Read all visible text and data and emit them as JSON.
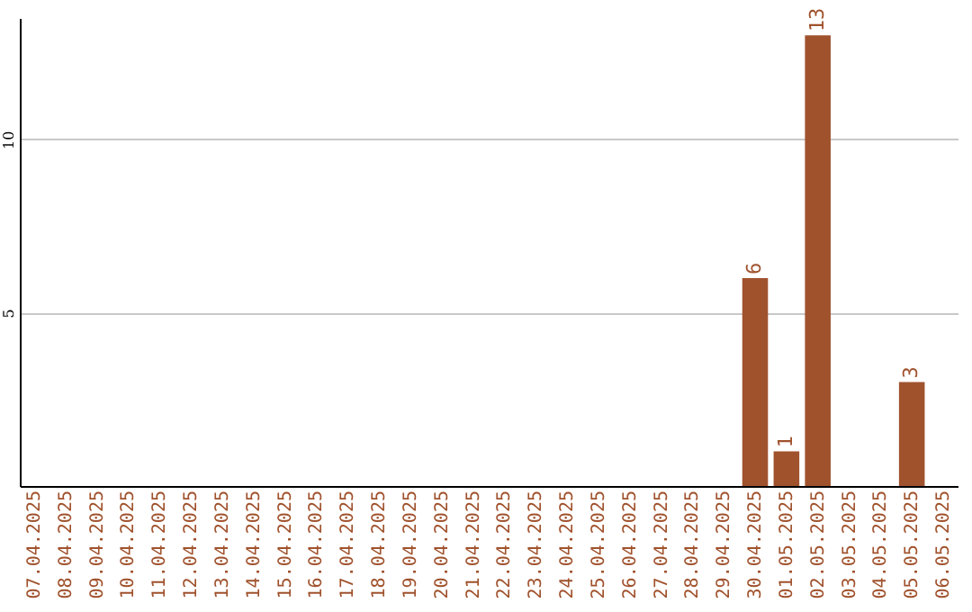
{
  "chart_data": {
    "type": "bar",
    "categories": [
      "07.04.2025",
      "08.04.2025",
      "09.04.2025",
      "10.04.2025",
      "11.04.2025",
      "12.04.2025",
      "13.04.2025",
      "14.04.2025",
      "15.04.2025",
      "16.04.2025",
      "17.04.2025",
      "18.04.2025",
      "19.04.2025",
      "20.04.2025",
      "21.04.2025",
      "22.04.2025",
      "23.04.2025",
      "24.04.2025",
      "25.04.2025",
      "26.04.2025",
      "27.04.2025",
      "28.04.2025",
      "29.04.2025",
      "30.04.2025",
      "01.05.2025",
      "02.05.2025",
      "03.05.2025",
      "04.05.2025",
      "05.05.2025",
      "06.05.2025"
    ],
    "values": [
      null,
      null,
      null,
      null,
      null,
      null,
      null,
      null,
      null,
      null,
      null,
      null,
      null,
      null,
      null,
      null,
      null,
      null,
      null,
      null,
      null,
      null,
      null,
      6,
      1,
      13,
      null,
      null,
      3,
      null
    ],
    "color": "#a0522d",
    "ylim": [
      0,
      13.5
    ],
    "yticks": [
      5,
      10
    ],
    "grid": "y",
    "data_labels": true
  }
}
